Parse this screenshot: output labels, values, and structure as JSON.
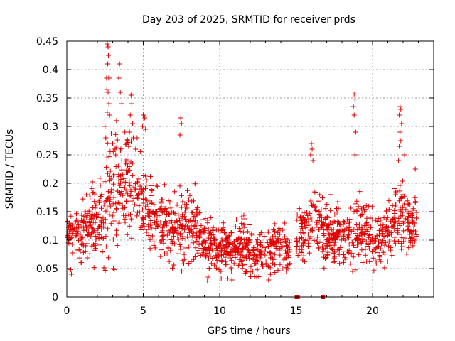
{
  "chart_data": {
    "type": "scatter",
    "title": "Day 203 of 2025, SRMTID for receiver prds",
    "xlabel": "GPS time / hours",
    "ylabel": "SRMTID / TECUs",
    "xlim": [
      0,
      24
    ],
    "ylim": [
      0,
      0.45
    ],
    "xticks": [
      0,
      5,
      10,
      15,
      20
    ],
    "xtick_labels": [
      "0",
      "5",
      "10",
      "15",
      "20"
    ],
    "yticks": [
      0,
      0.05,
      0.1,
      0.15,
      0.2,
      0.25,
      0.3,
      0.35,
      0.4,
      0.45
    ],
    "ytick_labels": [
      "0",
      "0.05",
      "0.1",
      "0.15",
      "0.2",
      "0.25",
      "0.3",
      "0.35",
      "0.4",
      "0.45"
    ],
    "grid": true,
    "marker": "plus",
    "series_color": "#e00000",
    "envelope": {
      "description": "approximate smoothed center and spread of the point cloud, read from the figure",
      "x": [
        0,
        0.5,
        1.0,
        1.5,
        2.0,
        2.5,
        3.0,
        3.5,
        4.0,
        4.5,
        5.0,
        5.5,
        6.0,
        6.5,
        7.0,
        7.5,
        8.0,
        8.5,
        9.0,
        9.5,
        10.0,
        10.5,
        11.0,
        11.5,
        12.0,
        12.5,
        13.0,
        13.5,
        14.0,
        14.5
      ],
      "center": [
        0.11,
        0.115,
        0.12,
        0.14,
        0.13,
        0.16,
        0.19,
        0.19,
        0.2,
        0.18,
        0.17,
        0.15,
        0.13,
        0.12,
        0.12,
        0.12,
        0.13,
        0.12,
        0.1,
        0.09,
        0.09,
        0.08,
        0.09,
        0.09,
        0.08,
        0.07,
        0.08,
        0.09,
        0.09,
        0.08
      ],
      "spread": [
        0.03,
        0.035,
        0.045,
        0.05,
        0.05,
        0.08,
        0.09,
        0.08,
        0.07,
        0.06,
        0.055,
        0.05,
        0.045,
        0.045,
        0.05,
        0.05,
        0.05,
        0.045,
        0.04,
        0.035,
        0.035,
        0.035,
        0.04,
        0.04,
        0.035,
        0.03,
        0.035,
        0.04,
        0.035,
        0.03
      ]
    },
    "envelope_late": {
      "x": [
        15.0,
        15.5,
        16.0,
        16.5,
        17.0,
        17.5,
        18.0,
        18.5,
        19.0,
        19.5,
        20.0,
        20.5,
        21.0,
        21.5,
        22.0,
        22.5,
        22.8
      ],
      "center": [
        0.1,
        0.11,
        0.14,
        0.13,
        0.11,
        0.11,
        0.11,
        0.1,
        0.12,
        0.11,
        0.11,
        0.1,
        0.12,
        0.14,
        0.15,
        0.12,
        0.13
      ],
      "spread": [
        0.03,
        0.04,
        0.05,
        0.045,
        0.04,
        0.04,
        0.045,
        0.04,
        0.05,
        0.04,
        0.04,
        0.04,
        0.045,
        0.05,
        0.06,
        0.04,
        0.04
      ]
    },
    "spikes": [
      {
        "x": 2.65,
        "y": 0.445
      },
      {
        "x": 2.7,
        "y": 0.44
      },
      {
        "x": 2.72,
        "y": 0.425
      },
      {
        "x": 2.68,
        "y": 0.41
      },
      {
        "x": 2.74,
        "y": 0.385
      },
      {
        "x": 2.6,
        "y": 0.385
      },
      {
        "x": 2.78,
        "y": 0.385
      },
      {
        "x": 2.62,
        "y": 0.365
      },
      {
        "x": 2.7,
        "y": 0.36
      },
      {
        "x": 2.75,
        "y": 0.34
      },
      {
        "x": 2.64,
        "y": 0.325
      },
      {
        "x": 2.8,
        "y": 0.32
      },
      {
        "x": 3.45,
        "y": 0.41
      },
      {
        "x": 3.4,
        "y": 0.385
      },
      {
        "x": 3.5,
        "y": 0.36
      },
      {
        "x": 3.6,
        "y": 0.34
      },
      {
        "x": 4.2,
        "y": 0.355
      },
      {
        "x": 4.25,
        "y": 0.34
      },
      {
        "x": 4.15,
        "y": 0.32
      },
      {
        "x": 4.3,
        "y": 0.305
      },
      {
        "x": 4.1,
        "y": 0.29
      },
      {
        "x": 4.35,
        "y": 0.28
      },
      {
        "x": 5.0,
        "y": 0.32
      },
      {
        "x": 5.1,
        "y": 0.315
      },
      {
        "x": 4.95,
        "y": 0.3
      },
      {
        "x": 5.15,
        "y": 0.295
      },
      {
        "x": 7.45,
        "y": 0.315
      },
      {
        "x": 7.5,
        "y": 0.305
      },
      {
        "x": 7.4,
        "y": 0.285
      },
      {
        "x": 2.5,
        "y": 0.3
      },
      {
        "x": 2.55,
        "y": 0.28
      },
      {
        "x": 3.0,
        "y": 0.27
      },
      {
        "x": 3.2,
        "y": 0.25
      },
      {
        "x": 3.8,
        "y": 0.29
      },
      {
        "x": 3.9,
        "y": 0.27
      },
      {
        "x": 4.5,
        "y": 0.26
      },
      {
        "x": 4.6,
        "y": 0.28
      },
      {
        "x": 3.05,
        "y": 0.05
      },
      {
        "x": 3.1,
        "y": 0.048
      },
      {
        "x": 16.0,
        "y": 0.27
      },
      {
        "x": 16.05,
        "y": 0.26
      },
      {
        "x": 15.95,
        "y": 0.25
      },
      {
        "x": 16.1,
        "y": 0.24
      },
      {
        "x": 18.8,
        "y": 0.357
      },
      {
        "x": 18.85,
        "y": 0.348
      },
      {
        "x": 18.75,
        "y": 0.335
      },
      {
        "x": 18.8,
        "y": 0.32
      },
      {
        "x": 18.9,
        "y": 0.29
      },
      {
        "x": 18.85,
        "y": 0.25
      },
      {
        "x": 21.8,
        "y": 0.335
      },
      {
        "x": 21.85,
        "y": 0.33
      },
      {
        "x": 21.75,
        "y": 0.32
      },
      {
        "x": 21.9,
        "y": 0.305
      },
      {
        "x": 21.8,
        "y": 0.29
      },
      {
        "x": 21.85,
        "y": 0.275
      },
      {
        "x": 21.75,
        "y": 0.265
      },
      {
        "x": 22.1,
        "y": 0.25
      },
      {
        "x": 21.7,
        "y": 0.24
      },
      {
        "x": 22.8,
        "y": 0.225
      },
      {
        "x": 9.2,
        "y": 0.028
      },
      {
        "x": 9.25,
        "y": 0.035
      },
      {
        "x": 10.8,
        "y": 0.03
      },
      {
        "x": 13.2,
        "y": 0.03
      },
      {
        "x": 0.3,
        "y": 0.04
      },
      {
        "x": 18.7,
        "y": 0.045
      },
      {
        "x": 0.25,
        "y": 0.048
      }
    ],
    "zero_markers": [
      {
        "x": 15.05,
        "y": 0.0
      },
      {
        "x": 15.1,
        "y": 0.0
      },
      {
        "x": 16.75,
        "y": 0.0
      }
    ],
    "point_count_estimate": 1500,
    "note": "Point cloud reconstructed from visual estimation of an SRMTID scatter; gap between about 14.6 and 15.0 hours."
  }
}
